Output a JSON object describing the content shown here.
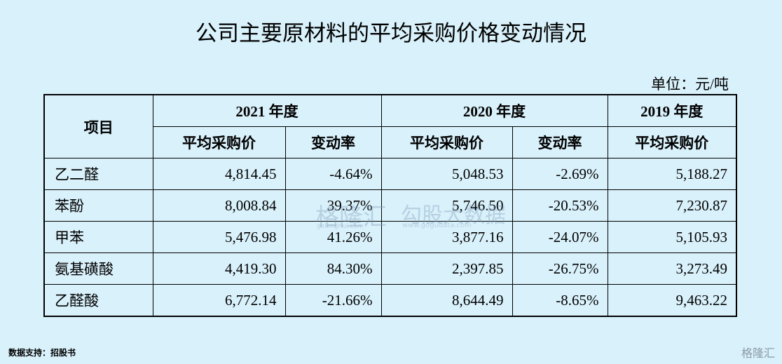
{
  "header": {
    "title": "公司主要原材料的平均采购价格变动情况",
    "unit": "单位：元/吨"
  },
  "table": {
    "item_header": "项目",
    "groups": [
      "2021 年度",
      "2020 年度",
      "2019 年度"
    ],
    "subheaders": [
      "平均采购价",
      "变动率",
      "平均采购价",
      "变动率",
      "平均采购价"
    ],
    "rows": [
      [
        "乙二醛",
        "4,814.45",
        "-4.64%",
        "5,048.53",
        "-2.69%",
        "5,188.27"
      ],
      [
        "苯酚",
        "8,008.84",
        "39.37%",
        "5,746.50",
        "-20.53%",
        "7,230.87"
      ],
      [
        "甲苯",
        "5,476.98",
        "41.26%",
        "3,877.16",
        "-24.07%",
        "5,105.93"
      ],
      [
        "氨基磺酸",
        "4,419.30",
        "84.30%",
        "2,397.85",
        "-26.75%",
        "3,273.49"
      ],
      [
        "乙醛酸",
        "6,772.14",
        "-21.66%",
        "8,644.49",
        "-8.65%",
        "9,463.22"
      ]
    ]
  },
  "watermark": {
    "brand": "格隆汇",
    "brand_url": "gelonghui.com",
    "partner": "勾股大数据",
    "partner_url": "www.gogudata.com"
  },
  "footer": {
    "source": "数据支持：招股书",
    "logo": "格隆汇"
  }
}
